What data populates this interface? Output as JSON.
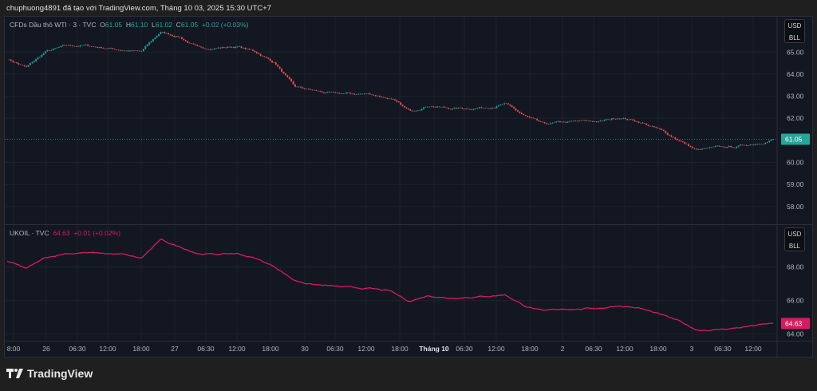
{
  "caption": "chuphuong4891 đã tạo với TradingView.com, Tháng 10 03, 2025 15:30 UTC+7",
  "brand": "TradingView",
  "colors": {
    "up": "#26a69a",
    "down": "#ef5350",
    "ukoil": "#d81b60",
    "bg": "#131722"
  },
  "top_pane": {
    "symbol": "CFDs Dầu thô WTI · 3 · TVC",
    "o_label": "O",
    "o": "61.05",
    "h_label": "H",
    "h": "61.10",
    "l_label": "L",
    "l": "61.02",
    "c_label": "C",
    "c": "61.05",
    "change": "+0.02 (+0.03%)",
    "currency": "USD",
    "unit": "BLL",
    "last_price": "61.05"
  },
  "bottom_pane": {
    "symbol": "UKOIL · TVC",
    "price": "64.63",
    "change": "+0.01 (+0.02%)",
    "currency": "USD",
    "unit": "BLL",
    "last_price": "64.63"
  },
  "chart_data": [
    {
      "type": "candlestick",
      "series_name": "CFDs Dầu thô WTI",
      "ylim": [
        57.2,
        66.6
      ],
      "yticks": [
        "65.00",
        "64.00",
        "63.00",
        "62.00",
        "60.00",
        "59.00",
        "58.00"
      ],
      "last": 61.05,
      "values": [
        64.7,
        64.3,
        65.0,
        65.25,
        65.3,
        65.2,
        65.1,
        65.0,
        65.9,
        65.7,
        65.15,
        65.2,
        65.25,
        65.0,
        64.5,
        63.4,
        63.25,
        63.1,
        63.1,
        63.1,
        62.9,
        62.3,
        62.6,
        62.45,
        62.45,
        62.5,
        62.65,
        62.1,
        61.7,
        61.8,
        61.85,
        61.85,
        62.05,
        61.85,
        61.5,
        61.05,
        60.55,
        60.65,
        60.7,
        60.85,
        61.05
      ]
    },
    {
      "type": "line",
      "series_name": "UKOIL",
      "ylim": [
        63.6,
        70.5
      ],
      "yticks": [
        "68.00",
        "66.00",
        "64.00"
      ],
      "last": 64.63,
      "values": [
        68.35,
        67.9,
        68.55,
        68.8,
        68.85,
        68.8,
        68.75,
        68.5,
        69.6,
        69.2,
        68.8,
        68.75,
        68.8,
        68.5,
        68.0,
        67.2,
        66.95,
        66.85,
        66.75,
        66.7,
        66.55,
        65.95,
        66.3,
        66.15,
        66.2,
        66.25,
        66.35,
        65.7,
        65.35,
        65.5,
        65.5,
        65.55,
        65.7,
        65.55,
        65.2,
        64.8,
        64.25,
        64.25,
        64.35,
        64.5,
        64.63
      ]
    }
  ],
  "time_axis": [
    "8:00",
    "26",
    "06:30",
    "12:00",
    "18:00",
    "27",
    "06:30",
    "12:00",
    "18:00",
    "30",
    "06:30",
    "12:00",
    "18:00",
    "Tháng 10",
    "06:30",
    "12:00",
    "18:00",
    "2",
    "06:30",
    "12:00",
    "18:00",
    "3",
    "06:30",
    "12:00"
  ]
}
